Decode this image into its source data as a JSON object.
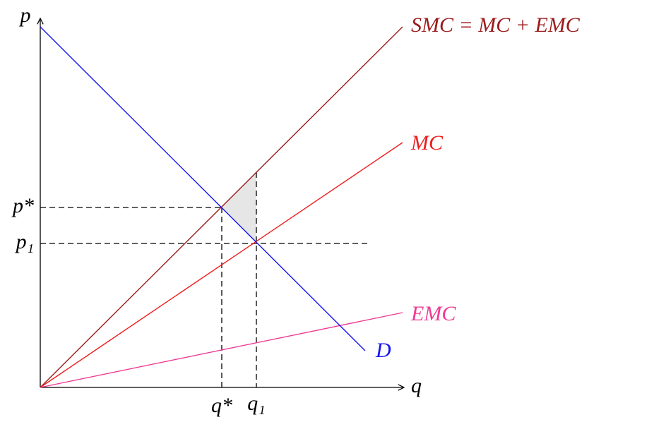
{
  "axes": {
    "y_label": "p",
    "x_label": "q"
  },
  "curves": [
    {
      "label": "SMC = MC + EMC"
    },
    {
      "label": "MC"
    },
    {
      "label": "EMC"
    },
    {
      "label": "D"
    }
  ],
  "price_labels": [
    "p*",
    "p₁"
  ],
  "quantity_labels": [
    "q*",
    "q₁"
  ]
}
